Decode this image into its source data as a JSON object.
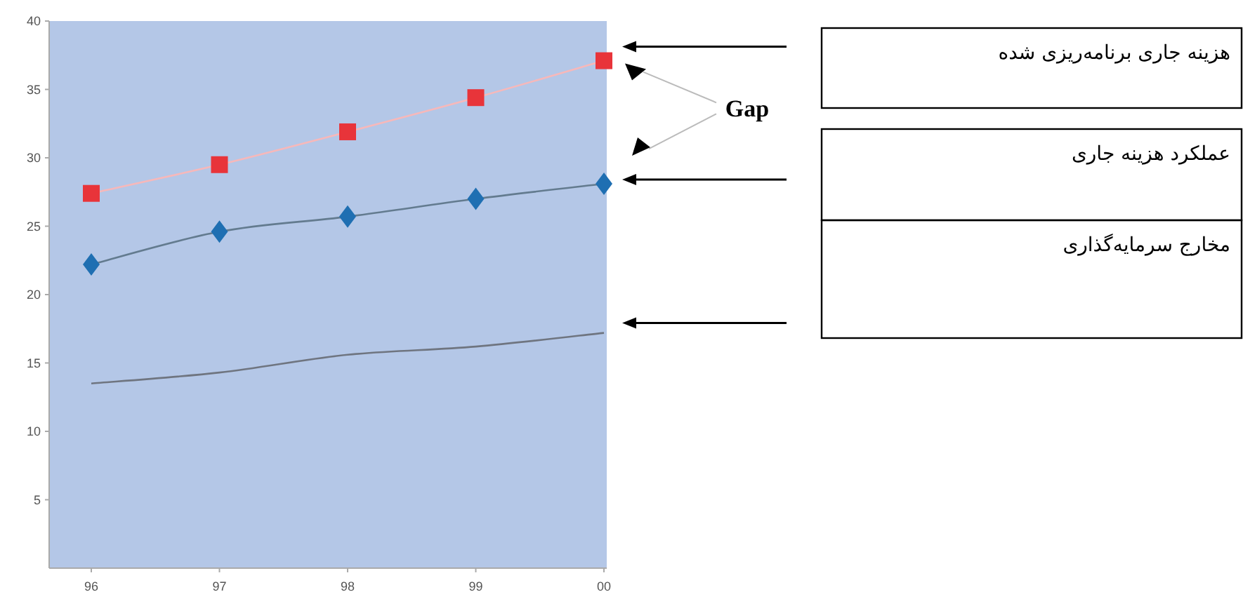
{
  "chart_data": {
    "type": "line",
    "categories": [
      "96",
      "97",
      "98",
      "99",
      "00"
    ],
    "series": [
      {
        "name": "هزینه جاری برنامه‌ریزی شده",
        "color": "#e8343a",
        "marker": "square",
        "values": [
          27.4,
          29.5,
          31.9,
          34.4,
          37.1
        ]
      },
      {
        "name": "عملکرد هزینه جاری",
        "color": "#1f6fb2",
        "marker": "diamond",
        "values": [
          22.2,
          24.6,
          25.7,
          27.0,
          28.1
        ]
      },
      {
        "name": "مخارج سرمایه‌گذاری",
        "color": "#6f7580",
        "marker": "none",
        "values": [
          13.5,
          14.3,
          15.6,
          16.2,
          17.2
        ]
      }
    ],
    "ylim": [
      0,
      40
    ],
    "yticks": [
      5,
      10,
      15,
      20,
      25,
      30,
      35,
      40
    ],
    "annotations": [
      "Gap"
    ]
  }
}
